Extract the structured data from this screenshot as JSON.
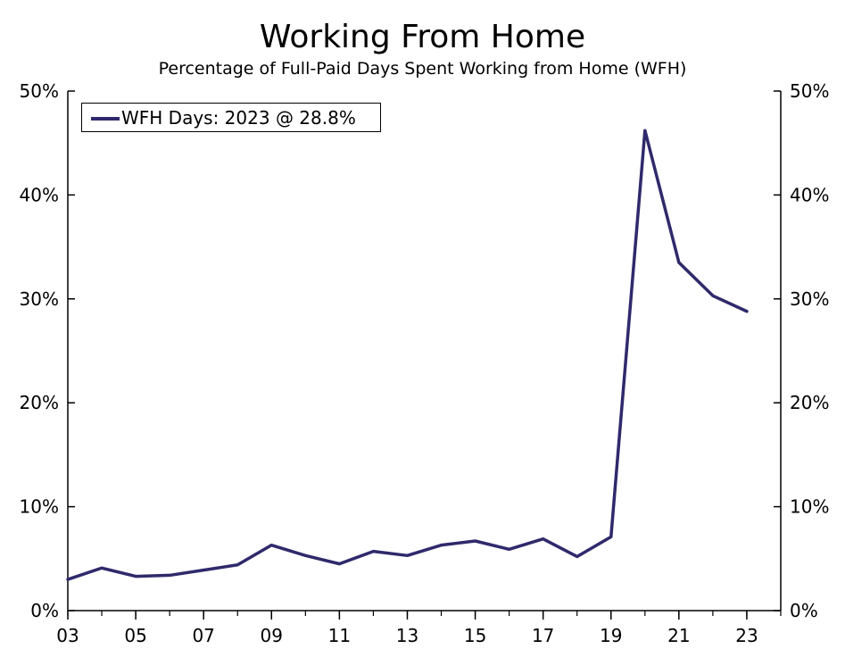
{
  "chart_data": {
    "type": "line",
    "title": "Working From Home",
    "subtitle": "Percentage of Full-Paid Days Spent Working from Home (WFH)",
    "xlabel": "",
    "ylabel": "",
    "x": [
      2003,
      2004,
      2005,
      2006,
      2007,
      2008,
      2009,
      2010,
      2011,
      2012,
      2013,
      2014,
      2015,
      2016,
      2017,
      2018,
      2019,
      2020,
      2021,
      2022,
      2023
    ],
    "x_ticks": [
      2003,
      2005,
      2007,
      2009,
      2011,
      2013,
      2015,
      2017,
      2019,
      2021,
      2023
    ],
    "x_tick_labels": [
      "03",
      "05",
      "07",
      "09",
      "11",
      "13",
      "15",
      "17",
      "19",
      "21",
      "23"
    ],
    "xlim": [
      2003,
      2024
    ],
    "y_ticks": [
      0,
      10,
      20,
      30,
      40,
      50
    ],
    "y_tick_labels": [
      "0%",
      "10%",
      "20%",
      "30%",
      "40%",
      "50%"
    ],
    "ylim": [
      0,
      50
    ],
    "grid": false,
    "legend_position": "top-left",
    "series": [
      {
        "name": "WFH Days: 2023 @ 28.8%",
        "color": "#2e2a6b",
        "values": [
          3.0,
          4.1,
          3.3,
          3.4,
          3.9,
          4.4,
          6.3,
          5.3,
          4.5,
          5.7,
          5.3,
          6.3,
          6.7,
          5.9,
          6.9,
          5.2,
          7.1,
          46.2,
          33.5,
          30.3,
          28.8
        ]
      }
    ]
  }
}
